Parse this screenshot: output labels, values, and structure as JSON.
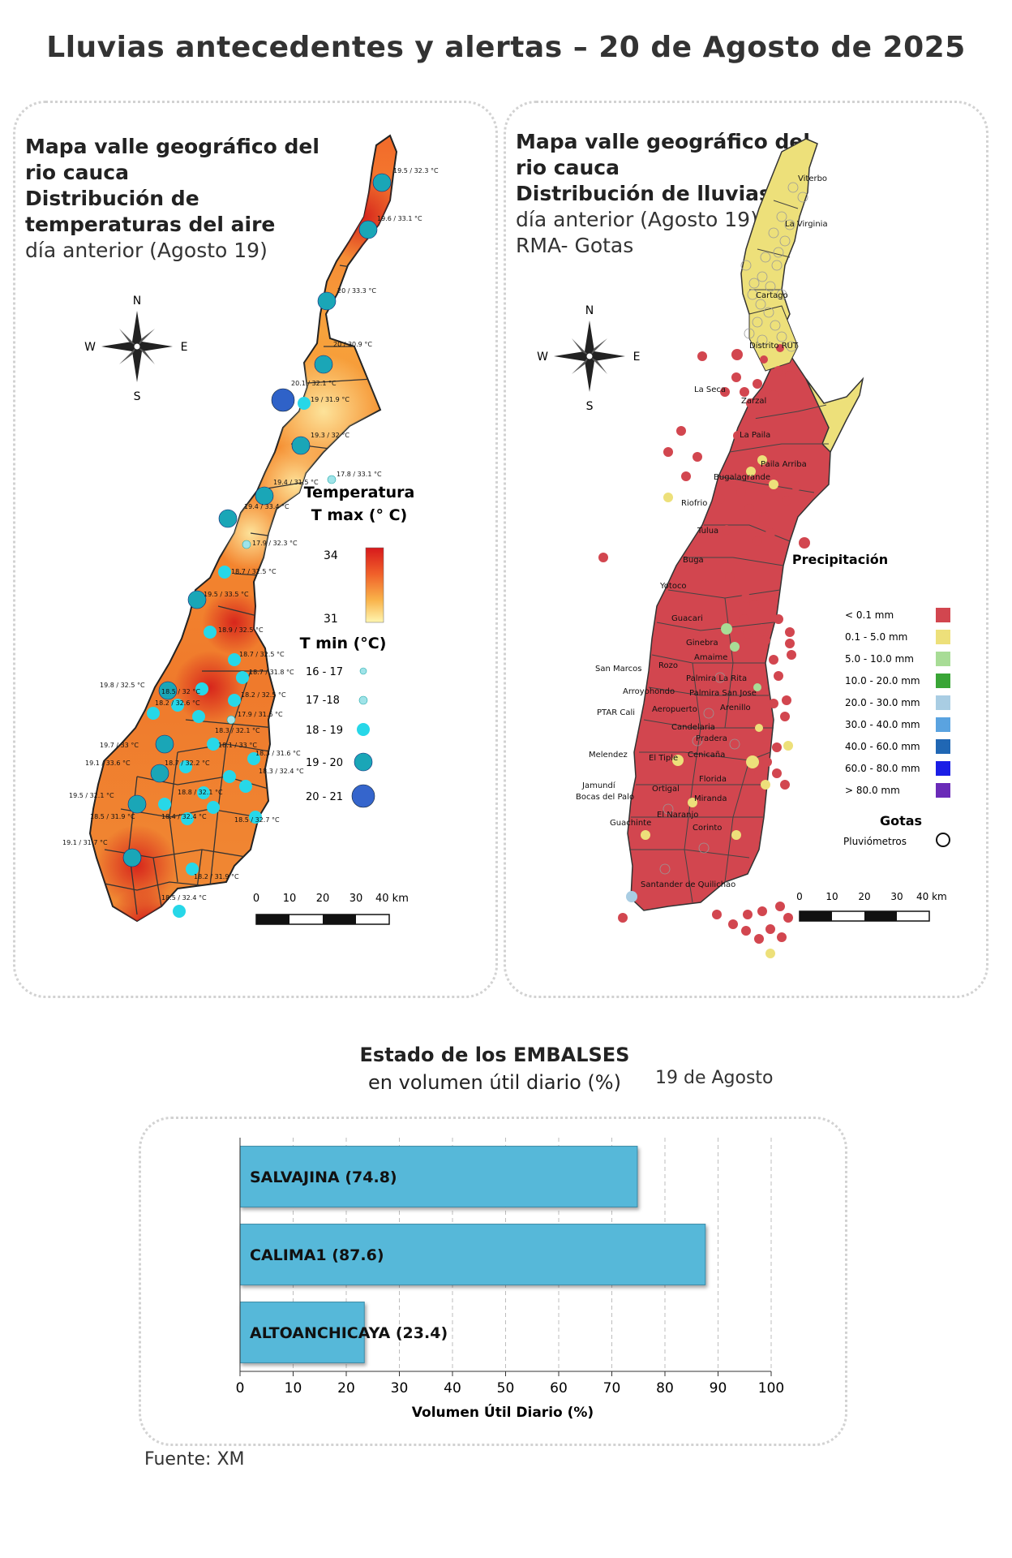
{
  "title": "Lluvias antecedentes y alertas – 20 de Agosto de 2025",
  "temp_map": {
    "title_line1": "Mapa valle geográfico del",
    "title_line2": "rio cauca",
    "title_line3": "Distribución de",
    "title_line4": "temperaturas del aire",
    "title_line5": "día anterior (Agosto 19)",
    "compass": {
      "n": "N",
      "s": "S",
      "e": "E",
      "w": "W"
    },
    "legend_tmax_title1": "Temperatura",
    "legend_tmax_title2": "T max (° C)",
    "tmax_high": "34",
    "tmax_low": "31",
    "legend_tmin_title": "T min (°C)",
    "tmin_classes": [
      "16 - 17",
      "17 -18",
      "18 - 19",
      "19 - 20",
      "20 - 21"
    ],
    "scale_labels": [
      "0",
      "10",
      "20",
      "30",
      "40 km"
    ],
    "station_labels": [
      "19.5 / 32.3 °C",
      "19.6 / 33.1 °C",
      "20 / 33.3 °C",
      "20 / 30.9 °C",
      "20.1 / 32.1 °C",
      "19 / 31.9 °C",
      "19.3 / 32 °C",
      "17.8 / 33.1 °C",
      "19.4 / 31.5 °C",
      "19.4 / 33.4 °C",
      "17.9 / 32.3 °C",
      "18.7 / 32.5 °C",
      "19.5 / 33.5 °C",
      "18.9 / 32.5 °C",
      "18.7 / 32.5 °C",
      "18.7 / 31.8 °C",
      "19.8 / 32.5 °C",
      "18.5 / 32 °C",
      "18.2 / 32.6 °C",
      "18.2 / 32.5 °C",
      "17.9 / 31.6 °C",
      "18.3 / 32.1 °C",
      "19.7 / 33 °C",
      "18.1 / 33 °C",
      "19.1 / 33.6 °C",
      "18.7 / 32.2 °C",
      "18.3 / 31.6 °C",
      "18.3 / 32.4 °C",
      "19.5 / 32.1 °C",
      "18.8 / 32.1 °C",
      "18.5 / 31.9 °C",
      "18.4 / 32.4 °C",
      "18.5 / 32.7 °C",
      "19.1 / 31.7 °C",
      "18.2 / 31.9 °C",
      "18.5 / 32.4 °C"
    ]
  },
  "rain_map": {
    "title_line1": "Mapa valle geográfico del",
    "title_line2": "rio cauca",
    "title_line3": "Distribución de lluvias",
    "title_line4": "día anterior (Agosto 19)",
    "title_line5": "RMA- Gotas",
    "compass": {
      "n": "N",
      "s": "S",
      "e": "E",
      "w": "W"
    },
    "legend_title": "Precipitación",
    "classes": [
      {
        "label": "< 0.1 mm",
        "color": "#d2464f"
      },
      {
        "label": "0.1 - 5.0 mm",
        "color": "#ede07a"
      },
      {
        "label": "5.0 - 10.0 mm",
        "color": "#a8dc96"
      },
      {
        "label": "10.0 - 20.0 mm",
        "color": "#39a536"
      },
      {
        "label": "20.0 - 30.0 mm",
        "color": "#a9cde3"
      },
      {
        "label": "30.0 - 40.0 mm",
        "color": "#5aa3e0"
      },
      {
        "label": "40.0 - 60.0 mm",
        "color": "#2067b4"
      },
      {
        "label": "60.0 - 80.0 mm",
        "color": "#1a1ee6"
      },
      {
        "label": "> 80.0 mm",
        "color": "#6a2bb8"
      }
    ],
    "gotas_title": "Gotas",
    "pluviometros": "Pluviómetros",
    "scale_labels": [
      "0",
      "10",
      "20",
      "30",
      "40 km"
    ],
    "places": [
      "Viterbo",
      "La Virginia",
      "Cartago",
      "Distrito RUT",
      "La Seca",
      "Zarzal",
      "La Paila",
      "Paila Arriba",
      "Bugalagrande",
      "Riofrio",
      "Tulua",
      "Buga",
      "Yotoco",
      "Guacari",
      "Ginebra",
      "Amaime",
      "San Marcos",
      "Rozo",
      "Palmira La Rita",
      "Arroyohondo",
      "Palmira San Jose",
      "Aeropuerto",
      "Arenillo",
      "PTAR Cali",
      "Candelaria",
      "Pradera",
      "Melendez",
      "El Tiple",
      "Cenicaña",
      "Florida",
      "Jamundí",
      "Bocas del Palo",
      "Ortigal",
      "Miranda",
      "El Naranjo",
      "Guachinte",
      "Corinto",
      "Santander de Quilichao"
    ]
  },
  "embalses": {
    "title_line1": "Estado de los EMBALSES",
    "title_line2": "en volumen útil diario (%)",
    "date": "19 de Agosto",
    "source": "Fuente: XM"
  },
  "chart_data": {
    "type": "bar",
    "orientation": "horizontal",
    "categories": [
      "SALVAJINA (74.8)",
      "CALIMA1 (87.6)",
      "ALTOANCHICAYA (23.4)"
    ],
    "values": [
      74.8,
      87.6,
      23.4
    ],
    "xlabel": "Volumen Útil Diario (%)",
    "xlim": [
      0,
      100
    ],
    "xticks": [
      0,
      10,
      20,
      30,
      40,
      50,
      60,
      70,
      80,
      90,
      100
    ],
    "bar_color": "#56b8d9",
    "grid": "vertical dashed"
  }
}
